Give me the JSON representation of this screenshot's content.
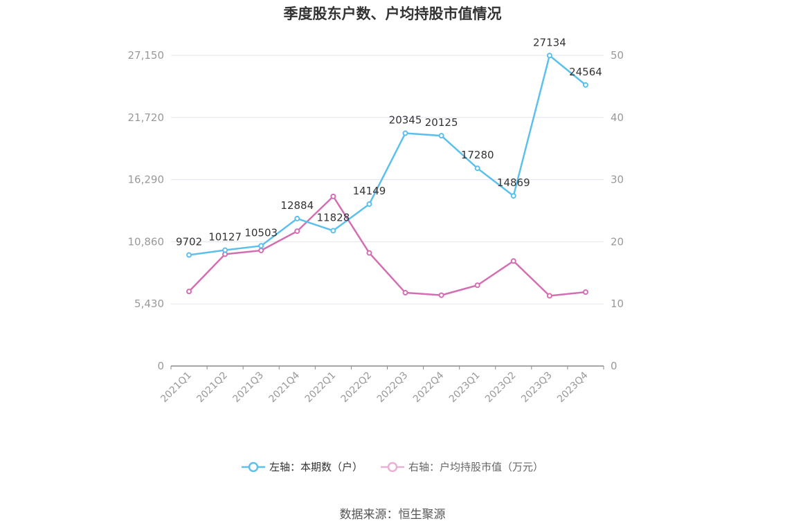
{
  "chart_data": {
    "type": "line",
    "title": "季度股东户数、户均持股市值情况",
    "categories": [
      "2021Q1",
      "2021Q2",
      "2021Q3",
      "2021Q4",
      "2022Q1",
      "2022Q2",
      "2022Q3",
      "2022Q4",
      "2023Q1",
      "2023Q2",
      "2023Q3",
      "2023Q4"
    ],
    "series": [
      {
        "name": "左轴：本期数（户）",
        "axis": "left",
        "color": "#5bc0eb",
        "values": [
          9702,
          10127,
          10503,
          12884,
          11828,
          14149,
          20345,
          20125,
          17280,
          14869,
          27134,
          24564
        ],
        "labels": [
          "9702",
          "10127",
          "10503",
          "12884",
          "11828",
          "14149",
          "20345",
          "20125",
          "17280",
          "14869",
          "27134",
          "24564"
        ]
      },
      {
        "name": "右轴：户均持股市值（万元）",
        "axis": "right",
        "color": "#d46eb2",
        "values": [
          12.0,
          18.0,
          18.6,
          21.7,
          27.3,
          18.2,
          11.8,
          11.4,
          13.0,
          16.9,
          11.3,
          11.9
        ]
      }
    ],
    "left_axis": {
      "ticks": [
        0,
        5430,
        10860,
        16290,
        21720,
        27150
      ],
      "tick_labels": [
        "0",
        "5,430",
        "10,860",
        "16,290",
        "21,720",
        "27,150"
      ],
      "range": [
        0,
        27150
      ]
    },
    "right_axis": {
      "ticks": [
        0,
        10,
        20,
        30,
        40,
        50
      ],
      "tick_labels": [
        "0",
        "10",
        "20",
        "30",
        "40",
        "50"
      ],
      "range": [
        0,
        50
      ]
    },
    "grid": true,
    "legend_position": "bottom"
  },
  "source_text": "数据来源：恒生聚源"
}
